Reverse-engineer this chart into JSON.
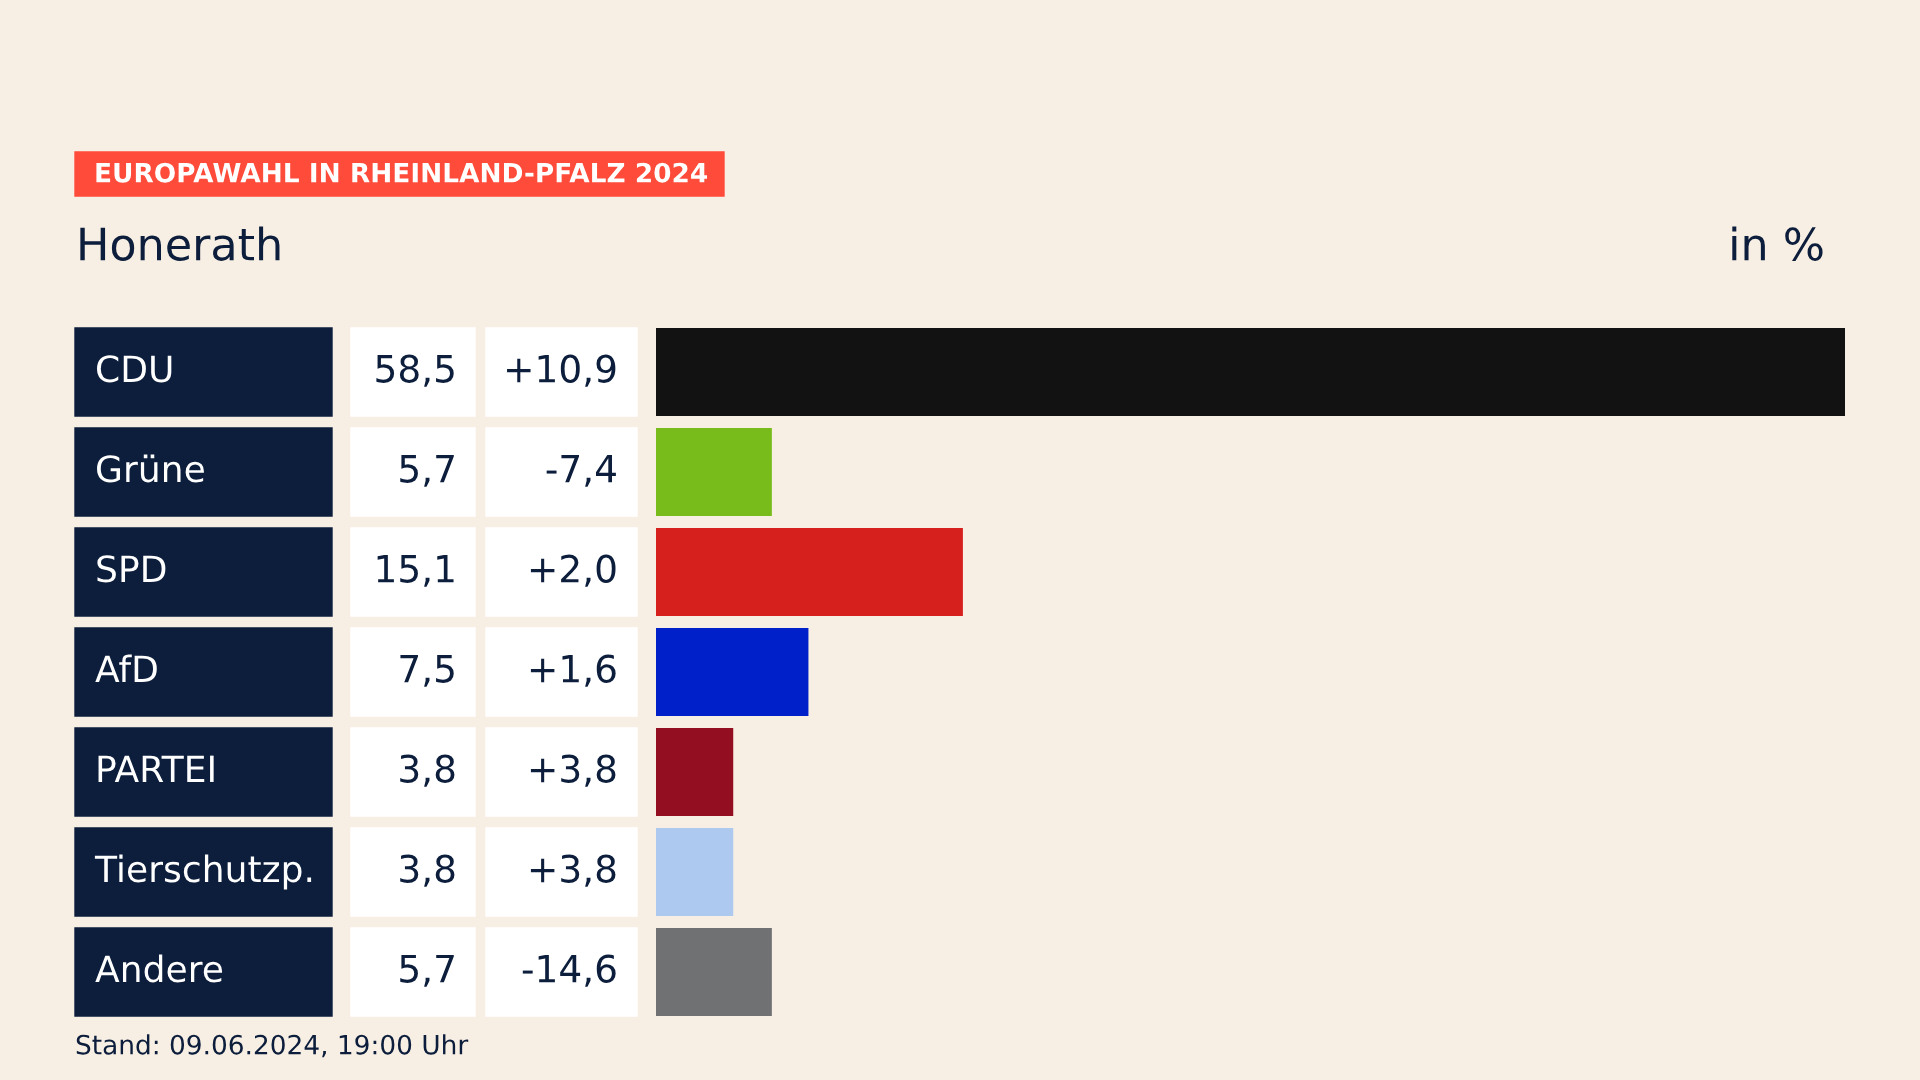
{
  "chart_data": {
    "type": "bar",
    "orientation": "horizontal",
    "title": "EUROPAWAHL IN RHEINLAND-PFALZ 2024",
    "subtitle": "Honerath",
    "xlabel": "in %",
    "categories": [
      "CDU",
      "Grüne",
      "SPD",
      "AfD",
      "PARTEI",
      "Tierschutzp.",
      "Andere"
    ],
    "values": [
      58.5,
      5.7,
      15.1,
      7.5,
      3.8,
      3.8,
      5.7
    ],
    "colors": [
      "#121212",
      "#78bc1b",
      "#d5201e",
      "#0021c9",
      "#920e20",
      "#adc9ef",
      "#707173"
    ],
    "value_labels": [
      "58,5",
      "5,7",
      "15,1",
      "7,5",
      "3,8",
      "3,8",
      "5,7"
    ],
    "annotations": [
      "+10,9",
      "-7,4",
      "+2,0",
      "+1,6",
      "+3,8",
      "+3,8",
      "-14,6",
      "Stand: 09.06.2024, 19:00 Uhr"
    ],
    "data_labels": false
  }
}
